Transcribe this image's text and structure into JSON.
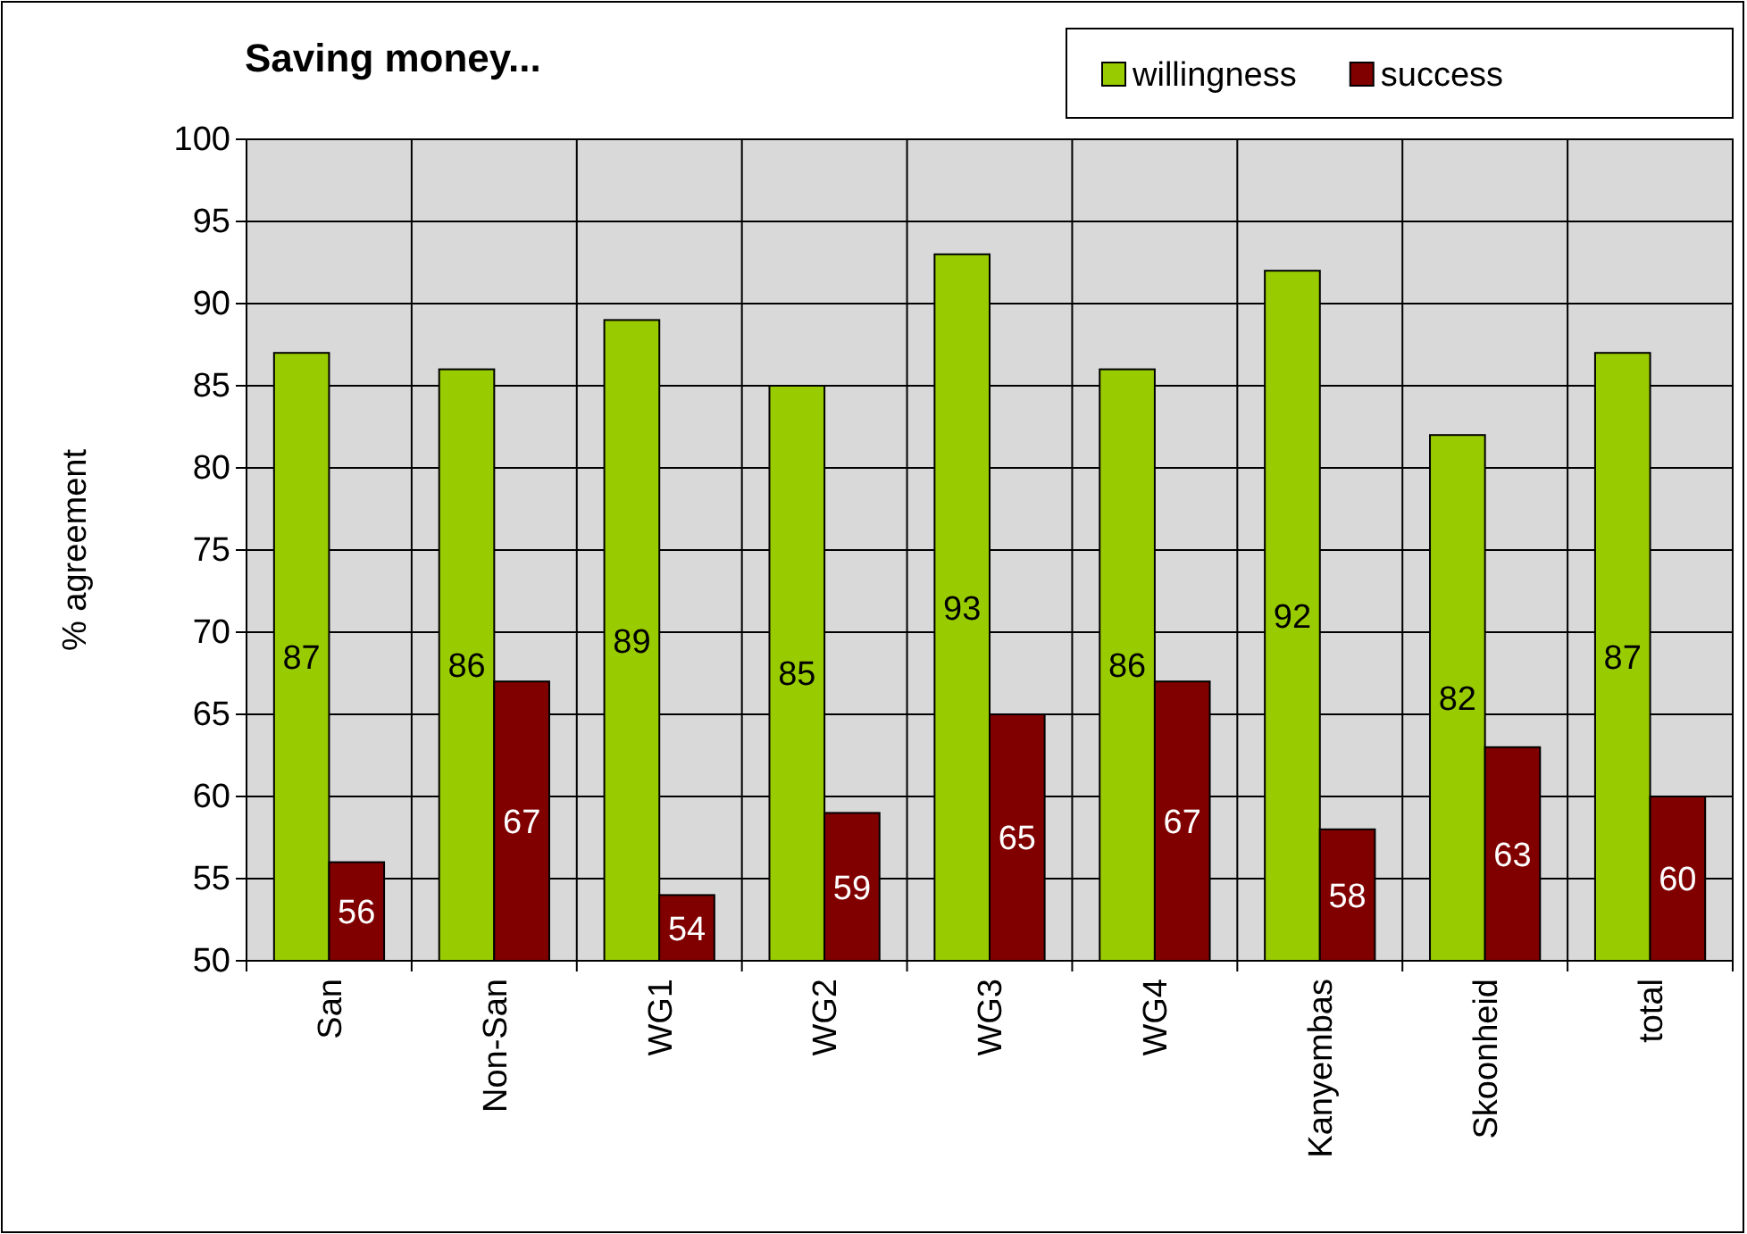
{
  "chart_data": {
    "type": "bar",
    "title": "Saving money...",
    "ylabel": "% agreement",
    "categories": [
      "San",
      "Non-San",
      "WG1",
      "WG2",
      "WG3",
      "WG4",
      "Kanyembas",
      "Skoonheid",
      "total"
    ],
    "series": [
      {
        "name": "willingness",
        "color": "#99cc00",
        "values": [
          87,
          86,
          89,
          85,
          93,
          86,
          92,
          82,
          87
        ]
      },
      {
        "name": "success",
        "color": "#800000",
        "values": [
          56,
          67,
          54,
          59,
          65,
          67,
          58,
          63,
          60
        ]
      }
    ],
    "ylim": [
      50,
      100
    ],
    "yticks": [
      50,
      55,
      60,
      65,
      70,
      75,
      80,
      85,
      90,
      95,
      100
    ],
    "grid": true,
    "legend": "top right",
    "data_labels": true
  }
}
